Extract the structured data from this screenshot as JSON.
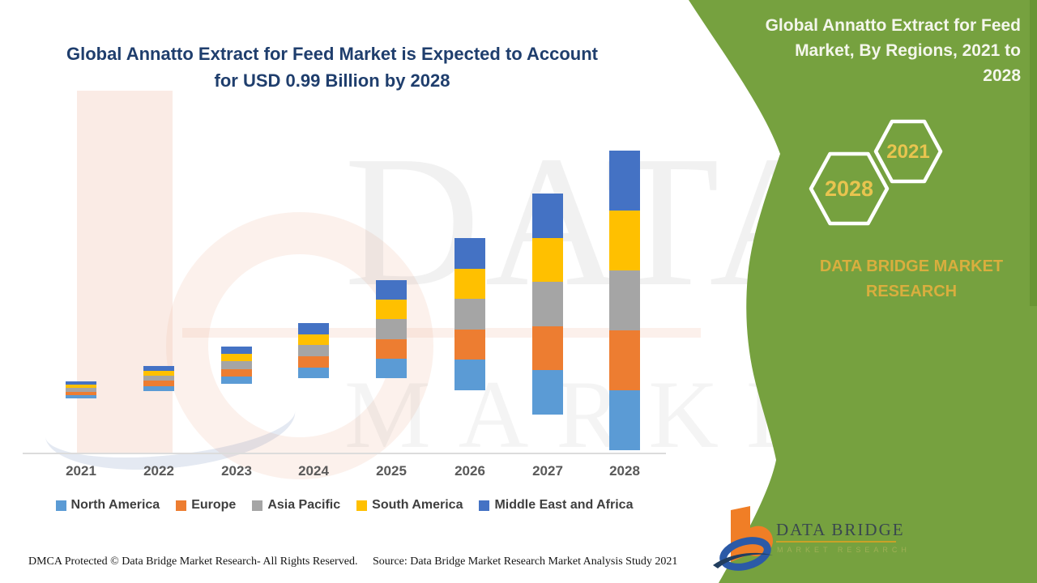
{
  "page": {
    "background": "#FFFFFF",
    "accent_green": "#76A13F",
    "edge_strip_green": "#5F8C2C"
  },
  "left_section": {
    "title_line1": "Global Annatto Extract for Feed Market is Expected to Account",
    "title_line2": "for USD 0.99 Billion by 2028",
    "title_color": "#1F3E6D"
  },
  "chart_data": {
    "type": "bar",
    "subtype": "stacked",
    "title": "Global Annatto Extract for Feed Market, By Regions, 2021 to 2028",
    "unit": "USD Billion",
    "categories": [
      "2021",
      "2022",
      "2023",
      "2024",
      "2025",
      "2026",
      "2027",
      "2028"
    ],
    "series": [
      {
        "name": "North America",
        "color": "#5B9BD5",
        "values": [
          0.047,
          0.057,
          0.07,
          0.085,
          0.113,
          0.141,
          0.17,
          0.198
        ]
      },
      {
        "name": "Europe",
        "color": "#ED7D31",
        "values": [
          0.047,
          0.057,
          0.07,
          0.085,
          0.113,
          0.141,
          0.17,
          0.198
        ]
      },
      {
        "name": "Asia Pacific",
        "color": "#A5A5A5",
        "values": [
          0.047,
          0.057,
          0.07,
          0.085,
          0.113,
          0.141,
          0.17,
          0.198
        ]
      },
      {
        "name": "South America",
        "color": "#FFC000",
        "values": [
          0.047,
          0.057,
          0.07,
          0.085,
          0.113,
          0.141,
          0.17,
          0.198
        ]
      },
      {
        "name": "Middle East and Africa",
        "color": "#4472C4",
        "values": [
          0.047,
          0.057,
          0.07,
          0.085,
          0.113,
          0.141,
          0.17,
          0.198
        ]
      }
    ],
    "totals": [
      0.235,
      0.285,
      0.35,
      0.425,
      0.565,
      0.705,
      0.85,
      0.99
    ],
    "projected_2028_total": "USD 0.99 Billion",
    "ylim": [
      0,
      1.0
    ],
    "gridlines": false,
    "y_axis_shown": false,
    "legend_position": "bottom"
  },
  "green_panel": {
    "background": "#76A13F",
    "title_lines": [
      "Global Annatto Extract for Feed",
      "Market, By Regions, 2021 to",
      "2028"
    ],
    "title_color": "#F4F6EC",
    "hexagons": [
      {
        "label": "2028"
      },
      {
        "label": "2021"
      }
    ],
    "hexagon_label_color": "#E8C44F",
    "hexagon_outline_color": "#FFFFFF",
    "brand_line1": "DATA BRIDGE MARKET",
    "brand_line2": "RESEARCH",
    "brand_color": "#D9AE3E",
    "logo_name": "DATA BRIDGE",
    "logo_tagline": "MARKET RESEARCH"
  },
  "watermark": {
    "line1": "DATA BRIDGE",
    "line2": "MARKET RESEARCH"
  },
  "footer": {
    "dmca": "DMCA Protected © Data Bridge Market Research- All Rights Reserved.",
    "source": "Source: Data Bridge Market Research Market Analysis Study 2021"
  }
}
